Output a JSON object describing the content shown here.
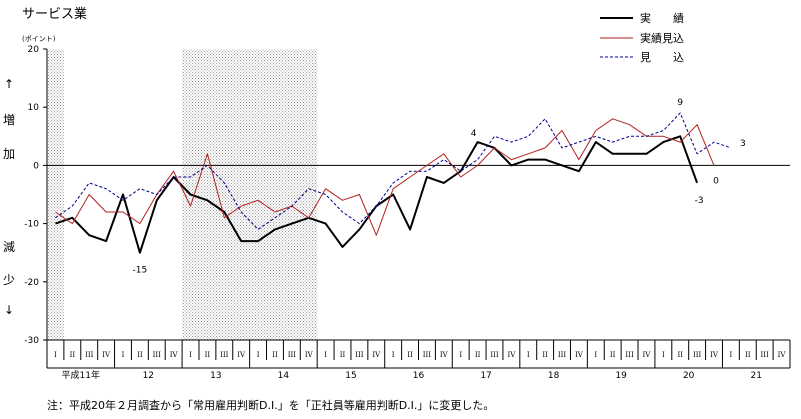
{
  "chart_data": {
    "type": "line",
    "title": "サービス業",
    "unit": "(ポイント)",
    "ylim": [
      -30,
      20
    ],
    "yticks": [
      "20",
      "10",
      "0",
      "-10",
      "-20",
      "-30"
    ],
    "ylabel_up": [
      "↑",
      "増",
      "加"
    ],
    "ylabel_down": [
      "減",
      "少",
      "↓"
    ],
    "quarter_labels": [
      "I",
      "II",
      "III",
      "IV"
    ],
    "years": [
      "平成11年",
      "12",
      "13",
      "14",
      "15",
      "16",
      "17",
      "18",
      "19",
      "20",
      "21"
    ],
    "shaded_quarters": [
      [
        0,
        1
      ],
      [
        8,
        16
      ]
    ],
    "legend": {
      "position": "top-right"
    },
    "series": [
      {
        "name": "実　　績",
        "style": "solid-bold",
        "color": "#000000",
        "values": [
          -10,
          -9,
          -12,
          -13,
          -5,
          -15,
          -6,
          -2,
          -5,
          -6,
          -8,
          -13,
          -13,
          -11,
          -10,
          -9,
          -10,
          -14,
          -11,
          -7,
          -5,
          -11,
          -2,
          -3,
          -1,
          4,
          3,
          0,
          1,
          1,
          0,
          -1,
          4,
          2,
          2,
          2,
          4,
          5,
          -3
        ]
      },
      {
        "name": "実績見込",
        "style": "solid-thin",
        "color": "#b22222",
        "values": [
          -8,
          -10,
          -5,
          -8,
          -8,
          -10,
          -5,
          -1,
          -7,
          2,
          -9,
          -7,
          -6,
          -8,
          -7,
          -9,
          -4,
          -6,
          -5,
          -12,
          -4,
          -2,
          0,
          2,
          -2,
          0,
          3,
          1,
          2,
          3,
          6,
          1,
          6,
          8,
          7,
          5,
          5,
          4,
          7,
          0
        ]
      },
      {
        "name": "見　　込",
        "style": "dashed",
        "color": "#00008b",
        "values": [
          -9,
          -7,
          -3,
          -4,
          -6,
          -4,
          -5,
          -2,
          -2,
          0,
          -3,
          -8,
          -11,
          -9,
          -7,
          -4,
          -5,
          -8,
          -10,
          -7,
          -3,
          -1,
          -1,
          1,
          -1,
          1,
          5,
          4,
          5,
          8,
          3,
          4,
          5,
          4,
          5,
          5,
          6,
          9,
          2,
          4,
          3
        ]
      }
    ],
    "annotations": [
      {
        "text": "-15",
        "series": 0,
        "index": 5
      },
      {
        "text": "4",
        "series": 0,
        "index": 25
      },
      {
        "text": "9",
        "series": 2,
        "index": 37
      },
      {
        "text": "-3",
        "series": 0,
        "index": 38
      },
      {
        "text": "0",
        "series": 1,
        "index": 39
      },
      {
        "text": "3",
        "series": 2,
        "index": 40
      }
    ]
  },
  "footnote": "注：平成20年２月調査から「常用雇用判断D.I.」を「正社員等雇用判断D.I.」に変更した。"
}
